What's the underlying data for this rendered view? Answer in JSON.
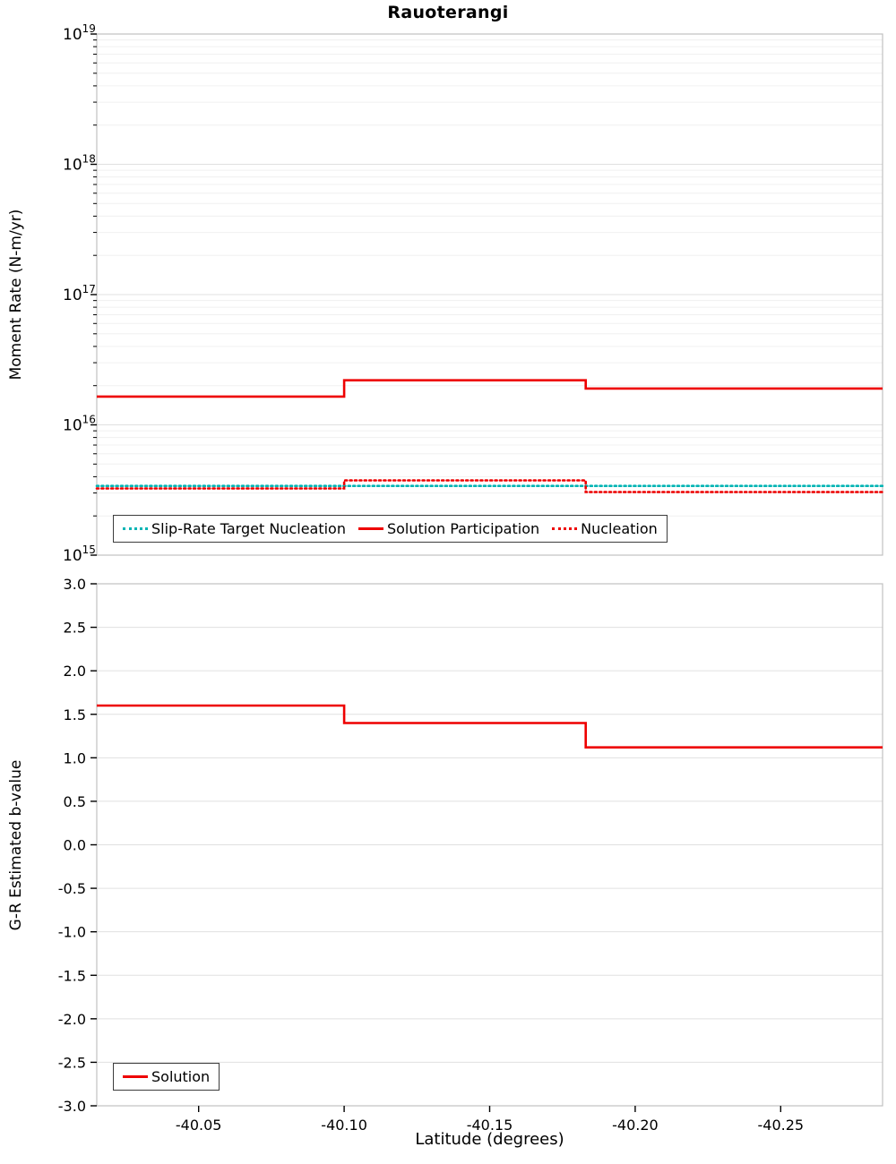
{
  "page": {
    "title": "Rauoterangi"
  },
  "colors": {
    "red": "#ee0000",
    "cyan": "#00b4b4",
    "grid_minor": "#f0f0f0",
    "grid_major": "#e0e0e0",
    "frame": "#c0c0c0",
    "tick": "#000000"
  },
  "chart_data": [
    {
      "id": "moment-rate",
      "type": "line",
      "title": "Rauoterangi",
      "xlabel": "",
      "ylabel": "Moment Rate (N-m/yr)",
      "yscale": "log",
      "ylim": [
        1000000000000000.0,
        1e+19
      ],
      "xlim": [
        -40.015,
        -40.285
      ],
      "x_ticks": [
        -40.05,
        -40.1,
        -40.15,
        -40.2,
        -40.25
      ],
      "y_tick_exponents": [
        15,
        16,
        17,
        18,
        19
      ],
      "grid": "horizontal",
      "legend_position": "bottom-left",
      "series": [
        {
          "name": "Slip-Rate Target Nucleation",
          "color": "#00b4b4",
          "line_style": "dotted",
          "step_x": [
            -40.015,
            -40.285
          ],
          "step_y": [
            3400000000000000.0
          ]
        },
        {
          "name": "Solution Participation",
          "color": "#ee0000",
          "line_style": "solid",
          "step_x": [
            -40.015,
            -40.1,
            -40.183,
            -40.285
          ],
          "step_y": [
            1.65e+16,
            2.2e+16,
            1.9e+16
          ]
        },
        {
          "name": "Nucleation",
          "color": "#ee0000",
          "line_style": "dotted",
          "step_x": [
            -40.015,
            -40.1,
            -40.183,
            -40.285
          ],
          "step_y": [
            3250000000000000.0,
            3750000000000000.0,
            3050000000000000.0
          ]
        }
      ]
    },
    {
      "id": "b-value",
      "type": "line",
      "title": "",
      "xlabel": "Latitude (degrees)",
      "ylabel": "G-R Estimated b-value",
      "yscale": "linear",
      "ylim": [
        -3.0,
        3.0
      ],
      "xlim": [
        -40.015,
        -40.285
      ],
      "x_ticks": [
        -40.05,
        -40.1,
        -40.15,
        -40.2,
        -40.25
      ],
      "x_tick_labels": [
        "-40.05",
        "-40.10",
        "-40.15",
        "-40.20",
        "-40.25"
      ],
      "y_ticks": [
        3.0,
        2.5,
        2.0,
        1.5,
        1.0,
        0.5,
        0.0,
        -0.5,
        -1.0,
        -1.5,
        -2.0,
        -2.5,
        -3.0
      ],
      "y_tick_labels": [
        "3.0",
        "2.5",
        "2.0",
        "1.5",
        "1.0",
        "0.5",
        "0.0",
        "-0.5",
        "-1.0",
        "-1.5",
        "-2.0",
        "-2.5",
        "-3.0"
      ],
      "grid": "horizontal",
      "legend_position": "bottom-left",
      "series": [
        {
          "name": "Solution",
          "color": "#ee0000",
          "line_style": "solid",
          "step_x": [
            -40.015,
            -40.1,
            -40.183,
            -40.285
          ],
          "step_y": [
            1.6,
            1.4,
            1.12
          ]
        }
      ]
    }
  ]
}
